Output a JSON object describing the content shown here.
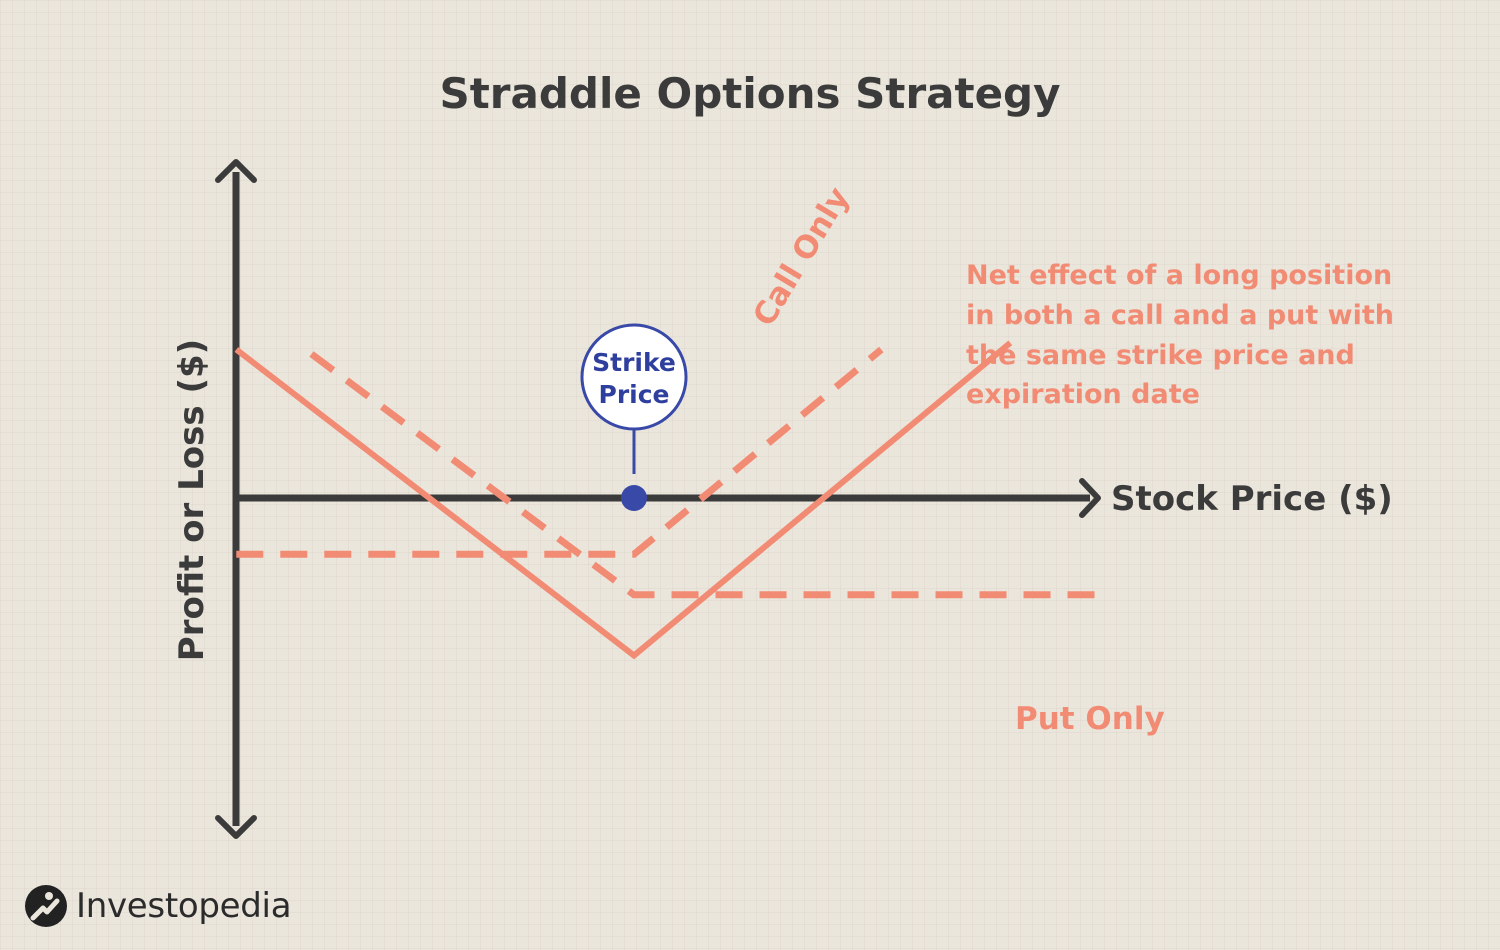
{
  "chart_data": {
    "type": "line",
    "title": "Straddle Options Strategy",
    "xlabel": "Stock Price ($)",
    "ylabel": "Profit or Loss ($)",
    "strike": 0,
    "xlim": [
      -10,
      10
    ],
    "ylim": [
      -7,
      7
    ],
    "series": [
      {
        "name": "Call Only",
        "style": "dashed",
        "x": [
          -9.25,
          0,
          5.75
        ],
        "y": [
          -2.5,
          -2.5,
          6.6
        ]
      },
      {
        "name": "Put Only",
        "style": "dashed",
        "x": [
          -7.5,
          0,
          11.0
        ],
        "y": [
          6.4,
          -4.3,
          -4.3
        ]
      },
      {
        "name": "",
        "style": "solid",
        "x": [
          -9.25,
          0,
          8.75
        ],
        "y": [
          6.6,
          -7.0,
          6.9
        ]
      }
    ],
    "annotations": {
      "strike_label": [
        "Strike",
        "Price"
      ],
      "note_lines": [
        "Net effect of a long position",
        "in both a call and a put with",
        "the same strike price and",
        "expiration date"
      ]
    },
    "colors": {
      "series": "#f28b74",
      "axis": "#3b3b3b",
      "strike": "#3949a8",
      "background": "#ebe6dc"
    }
  },
  "brand": {
    "name": "Investopedia",
    "icon": "investopedia-logo-icon"
  }
}
